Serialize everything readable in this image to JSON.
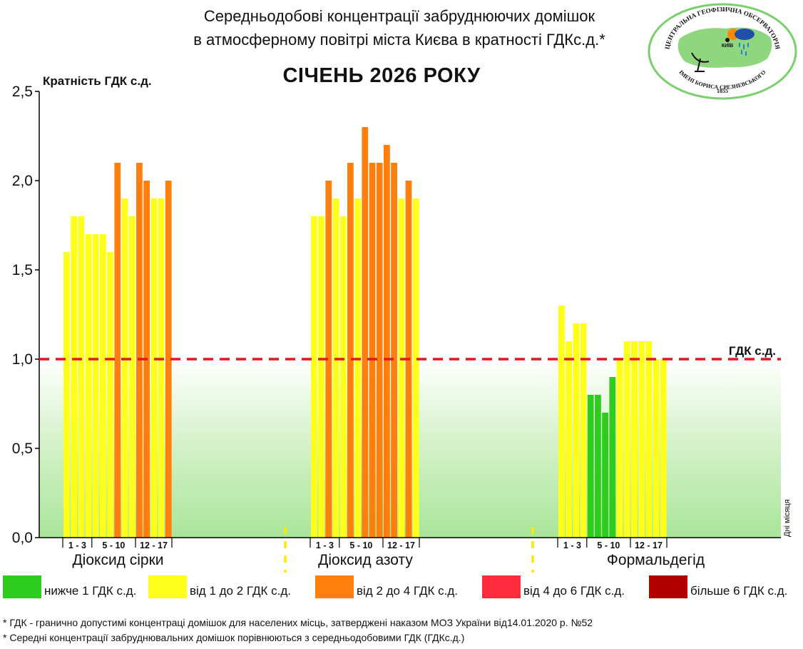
{
  "header": {
    "title_line1": "Середньодобові концентрації забруднюючих домішок",
    "title_line2": "в атмосферному повітрі міста Києва в кратності ГДКс.д.*",
    "subtitle": "СІЧЕНЬ 2026 РОКУ",
    "y_axis_label": "Кратність ГДК с.д."
  },
  "logo": {
    "text_top": "ЦЕНТРАЛЬНА ГЕОФІЗИЧНА ОБСЕРВАТОРІЯ",
    "text_bottom": "ІМЕНІ БОРИСА СРЕЗНЕВСЬКОГО",
    "year": "1855",
    "city": "КИЇВ"
  },
  "chart_data": {
    "type": "bar",
    "ylim": [
      0,
      2.5
    ],
    "yticks": [
      "0,0",
      "0,5",
      "1,0",
      "1,5",
      "2,0",
      "2,5"
    ],
    "ytick_values": [
      0,
      0.5,
      1.0,
      1.5,
      2.0,
      2.5
    ],
    "threshold": {
      "value": 1.0,
      "label": "ГДК с.д."
    },
    "x_axis_end_label": "Дні місяця",
    "day_range_labels": [
      "1 - 3",
      "5 - 10",
      "12 - 17"
    ],
    "color_scale": {
      "green": "#2ecc1f",
      "yellow": "#ffff1a",
      "orange": "#ff7f0e",
      "red": "#ff2a3c",
      "darkred": "#b20000"
    },
    "series": [
      {
        "name": "Діоксид сірки",
        "values": [
          1.6,
          1.8,
          1.8,
          1.7,
          1.7,
          1.7,
          1.6,
          2.1,
          1.9,
          1.8,
          2.1,
          2.0,
          1.9,
          1.9,
          2.0
        ]
      },
      {
        "name": "Діоксид азоту",
        "values": [
          1.8,
          1.8,
          2.0,
          1.9,
          1.8,
          2.1,
          1.9,
          2.3,
          2.1,
          2.1,
          2.2,
          2.1,
          1.9,
          2.0,
          1.9
        ]
      },
      {
        "name": "Формальдегід",
        "values": [
          1.3,
          1.1,
          1.2,
          1.2,
          0.8,
          0.8,
          0.7,
          0.9,
          1.0,
          1.1,
          1.1,
          1.1,
          1.1,
          1.0,
          1.0
        ]
      }
    ]
  },
  "legend": [
    {
      "label": "нижче 1 ГДК с.д.",
      "color": "#2ecc1f"
    },
    {
      "label": "від 1 до 2 ГДК с.д.",
      "color": "#ffff1a"
    },
    {
      "label": "від 2 до 4 ГДК с.д.",
      "color": "#ff7f0e"
    },
    {
      "label": "від 4 до 6 ГДК с.д.",
      "color": "#ff2a3c"
    },
    {
      "label": "більше 6 ГДК с.д.",
      "color": "#b20000"
    }
  ],
  "footnotes": {
    "line1": "* ГДК - гранично допустимі концентраці домішок для населених місць, затверджені наказом МОЗ України від14.01.2020 р. №52",
    "line2": "* Середні концентрації забруднювальних домішок порівнюються з середньодобовими  ГДК (ГДКс.д.)"
  }
}
